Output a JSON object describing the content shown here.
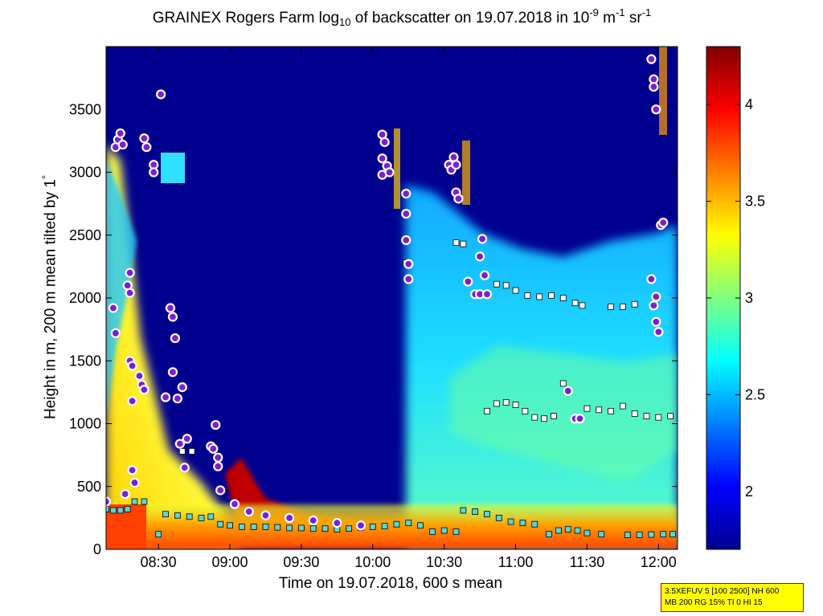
{
  "title": {
    "t1": "GRAINEX Rogers Farm log",
    "t2": "10",
    "t3": " of backscatter on 19.07.2018 in 10",
    "t4": "-9",
    "t5": " m",
    "t6": "-1",
    "t7": " sr",
    "t8": "-1"
  },
  "ylabel": {
    "main": "Height in m, 200 m mean tilted by 1",
    "deg": "°"
  },
  "param_box": {
    "line1": "3.5XEFUV 5 [100 2500] NH 600",
    "line2": "MB 200 RG 15% TI 0 HI 15"
  },
  "colors": {
    "background": "#00008f",
    "colormap": "jet",
    "point_edge": "#ffffff",
    "cloud_marker_fill": "#7a1fd6",
    "layer_marker_fill": "#5bd6d6"
  },
  "chart_data": {
    "type": "heatmap",
    "title": "GRAINEX Rogers Farm log10 of backscatter on 19.07.2018 in 10-9 m-1 sr-1",
    "xlabel": "Time on 19.07.2018, 600 s mean",
    "ylabel": "Height in m, 200 m mean tilted by 1°",
    "xlim": [
      "08:08",
      "12:08"
    ],
    "ylim": [
      0,
      4000
    ],
    "x_tick_labels": [
      "08:30",
      "09:00",
      "09:30",
      "10:00",
      "10:30",
      "11:00",
      "11:30",
      "12:00"
    ],
    "y_ticks": [
      0,
      500,
      1000,
      1500,
      2000,
      2500,
      3000,
      3500
    ],
    "colorbar": {
      "range": [
        1.7,
        4.3
      ],
      "ticks": [
        "2",
        "2.5",
        "3",
        "3.5",
        "4"
      ]
    },
    "grid": false,
    "cloud_base_points": [
      {
        "t": "08:08",
        "h": 380
      },
      {
        "t": "08:11",
        "h": 1920
      },
      {
        "t": "08:12",
        "h": 1720
      },
      {
        "t": "08:12",
        "h": 3200
      },
      {
        "t": "08:13",
        "h": 3260
      },
      {
        "t": "08:14",
        "h": 3310
      },
      {
        "t": "08:15",
        "h": 3220
      },
      {
        "t": "08:16",
        "h": 440
      },
      {
        "t": "08:17",
        "h": 2100
      },
      {
        "t": "08:18",
        "h": 2040
      },
      {
        "t": "08:18",
        "h": 2200
      },
      {
        "t": "08:18",
        "h": 1500
      },
      {
        "t": "08:19",
        "h": 1460
      },
      {
        "t": "08:19",
        "h": 1180
      },
      {
        "t": "08:19",
        "h": 630
      },
      {
        "t": "08:20",
        "h": 530
      },
      {
        "t": "08:22",
        "h": 1380
      },
      {
        "t": "08:23",
        "h": 1310
      },
      {
        "t": "08:24",
        "h": 1270
      },
      {
        "t": "08:24",
        "h": 3270
      },
      {
        "t": "08:25",
        "h": 3200
      },
      {
        "t": "08:28",
        "h": 3060
      },
      {
        "t": "08:28",
        "h": 3000
      },
      {
        "t": "08:31",
        "h": 3620
      },
      {
        "t": "08:33",
        "h": 1210
      },
      {
        "t": "08:35",
        "h": 1920
      },
      {
        "t": "08:36",
        "h": 1850
      },
      {
        "t": "08:36",
        "h": 1410
      },
      {
        "t": "08:37",
        "h": 1680
      },
      {
        "t": "08:38",
        "h": 1200
      },
      {
        "t": "08:39",
        "h": 840
      },
      {
        "t": "08:40",
        "h": 1290
      },
      {
        "t": "08:41",
        "h": 650
      },
      {
        "t": "08:42",
        "h": 880
      },
      {
        "t": "08:52",
        "h": 820
      },
      {
        "t": "08:53",
        "h": 800
      },
      {
        "t": "08:54",
        "h": 990
      },
      {
        "t": "08:55",
        "h": 730
      },
      {
        "t": "08:55",
        "h": 660
      },
      {
        "t": "08:56",
        "h": 470
      },
      {
        "t": "09:02",
        "h": 360
      },
      {
        "t": "09:08",
        "h": 300
      },
      {
        "t": "09:15",
        "h": 270
      },
      {
        "t": "09:25",
        "h": 250
      },
      {
        "t": "09:35",
        "h": 230
      },
      {
        "t": "09:45",
        "h": 210
      },
      {
        "t": "09:55",
        "h": 190
      },
      {
        "t": "10:04",
        "h": 3300
      },
      {
        "t": "10:04",
        "h": 3110
      },
      {
        "t": "10:04",
        "h": 2980
      },
      {
        "t": "10:05",
        "h": 3240
      },
      {
        "t": "10:06",
        "h": 3050
      },
      {
        "t": "10:07",
        "h": 3000
      },
      {
        "t": "10:14",
        "h": 2830
      },
      {
        "t": "10:14",
        "h": 2670
      },
      {
        "t": "10:14",
        "h": 2460
      },
      {
        "t": "10:15",
        "h": 2150
      },
      {
        "t": "10:15",
        "h": 2270
      },
      {
        "t": "10:32",
        "h": 3060
      },
      {
        "t": "10:33",
        "h": 3020
      },
      {
        "t": "10:34",
        "h": 3120
      },
      {
        "t": "10:35",
        "h": 3060
      },
      {
        "t": "10:35",
        "h": 2840
      },
      {
        "t": "10:36",
        "h": 2790
      },
      {
        "t": "10:40",
        "h": 2130
      },
      {
        "t": "10:43",
        "h": 2030
      },
      {
        "t": "10:45",
        "h": 2030
      },
      {
        "t": "10:45",
        "h": 2330
      },
      {
        "t": "10:46",
        "h": 2470
      },
      {
        "t": "10:47",
        "h": 2180
      },
      {
        "t": "10:48",
        "h": 2030
      },
      {
        "t": "11:22",
        "h": 1260
      },
      {
        "t": "11:25",
        "h": 1040
      },
      {
        "t": "11:27",
        "h": 1040
      },
      {
        "t": "11:57",
        "h": 2150
      },
      {
        "t": "11:57",
        "h": 3900
      },
      {
        "t": "11:58",
        "h": 3740
      },
      {
        "t": "11:58",
        "h": 3680
      },
      {
        "t": "11:59",
        "h": 3500
      },
      {
        "t": "11:59",
        "h": 1810
      },
      {
        "t": "11:58",
        "h": 1940
      },
      {
        "t": "11:59",
        "h": 2010
      },
      {
        "t": "12:00",
        "h": 1730
      },
      {
        "t": "12:01",
        "h": 2580
      },
      {
        "t": "12:02",
        "h": 2600
      }
    ],
    "layer_points": [
      {
        "t": "08:08",
        "h": 320
      },
      {
        "t": "08:11",
        "h": 310
      },
      {
        "t": "08:14",
        "h": 310
      },
      {
        "t": "08:17",
        "h": 320
      },
      {
        "t": "08:20",
        "h": 380
      },
      {
        "t": "08:24",
        "h": 380
      },
      {
        "t": "08:30",
        "h": 120
      },
      {
        "t": "08:33",
        "h": 280
      },
      {
        "t": "08:38",
        "h": 270
      },
      {
        "t": "08:43",
        "h": 260
      },
      {
        "t": "08:48",
        "h": 250
      },
      {
        "t": "08:52",
        "h": 260
      },
      {
        "t": "08:56",
        "h": 200
      },
      {
        "t": "09:00",
        "h": 190
      },
      {
        "t": "09:05",
        "h": 180
      },
      {
        "t": "09:10",
        "h": 180
      },
      {
        "t": "09:15",
        "h": 180
      },
      {
        "t": "09:20",
        "h": 175
      },
      {
        "t": "09:25",
        "h": 170
      },
      {
        "t": "09:30",
        "h": 170
      },
      {
        "t": "09:35",
        "h": 165
      },
      {
        "t": "09:40",
        "h": 165
      },
      {
        "t": "09:45",
        "h": 160
      },
      {
        "t": "09:50",
        "h": 165
      },
      {
        "t": "09:55",
        "h": 175
      },
      {
        "t": "10:00",
        "h": 180
      },
      {
        "t": "10:05",
        "h": 185
      },
      {
        "t": "10:10",
        "h": 200
      },
      {
        "t": "10:15",
        "h": 210
      },
      {
        "t": "10:20",
        "h": 190
      },
      {
        "t": "10:25",
        "h": 140
      },
      {
        "t": "10:30",
        "h": 150
      },
      {
        "t": "10:35",
        "h": 140
      },
      {
        "t": "10:38",
        "h": 310
      },
      {
        "t": "10:43",
        "h": 300
      },
      {
        "t": "10:48",
        "h": 280
      },
      {
        "t": "10:53",
        "h": 250
      },
      {
        "t": "10:58",
        "h": 220
      },
      {
        "t": "11:03",
        "h": 210
      },
      {
        "t": "11:08",
        "h": 200
      },
      {
        "t": "11:14",
        "h": 120
      },
      {
        "t": "11:18",
        "h": 150
      },
      {
        "t": "11:22",
        "h": 160
      },
      {
        "t": "11:26",
        "h": 150
      },
      {
        "t": "11:30",
        "h": 130
      },
      {
        "t": "11:36",
        "h": 120
      },
      {
        "t": "11:47",
        "h": 115
      },
      {
        "t": "11:52",
        "h": 115
      },
      {
        "t": "11:57",
        "h": 118
      },
      {
        "t": "12:02",
        "h": 120
      },
      {
        "t": "12:06",
        "h": 120
      }
    ],
    "upper_layer_points": [
      {
        "t": "10:35",
        "h": 2440
      },
      {
        "t": "10:38",
        "h": 2430
      },
      {
        "t": "10:52",
        "h": 2110
      },
      {
        "t": "10:56",
        "h": 2100
      },
      {
        "t": "11:00",
        "h": 2060
      },
      {
        "t": "11:05",
        "h": 2020
      },
      {
        "t": "11:10",
        "h": 2010
      },
      {
        "t": "11:15",
        "h": 2020
      },
      {
        "t": "11:20",
        "h": 2000
      },
      {
        "t": "11:25",
        "h": 1960
      },
      {
        "t": "11:28",
        "h": 1940
      },
      {
        "t": "11:40",
        "h": 1930
      },
      {
        "t": "11:45",
        "h": 1930
      },
      {
        "t": "11:50",
        "h": 1950
      },
      {
        "t": "10:48",
        "h": 1100
      },
      {
        "t": "10:52",
        "h": 1160
      },
      {
        "t": "10:56",
        "h": 1170
      },
      {
        "t": "11:00",
        "h": 1150
      },
      {
        "t": "11:04",
        "h": 1100
      },
      {
        "t": "11:08",
        "h": 1050
      },
      {
        "t": "11:12",
        "h": 1040
      },
      {
        "t": "11:16",
        "h": 1060
      },
      {
        "t": "11:20",
        "h": 1320
      },
      {
        "t": "11:30",
        "h": 1120
      },
      {
        "t": "11:35",
        "h": 1110
      },
      {
        "t": "11:40",
        "h": 1100
      },
      {
        "t": "11:45",
        "h": 1140
      },
      {
        "t": "11:50",
        "h": 1080
      },
      {
        "t": "11:55",
        "h": 1060
      },
      {
        "t": "12:00",
        "h": 1050
      },
      {
        "t": "12:05",
        "h": 1060
      },
      {
        "t": "08:40",
        "h": 780
      },
      {
        "t": "08:44",
        "h": 780
      },
      {
        "t": "10:14",
        "h": 2280
      }
    ]
  }
}
